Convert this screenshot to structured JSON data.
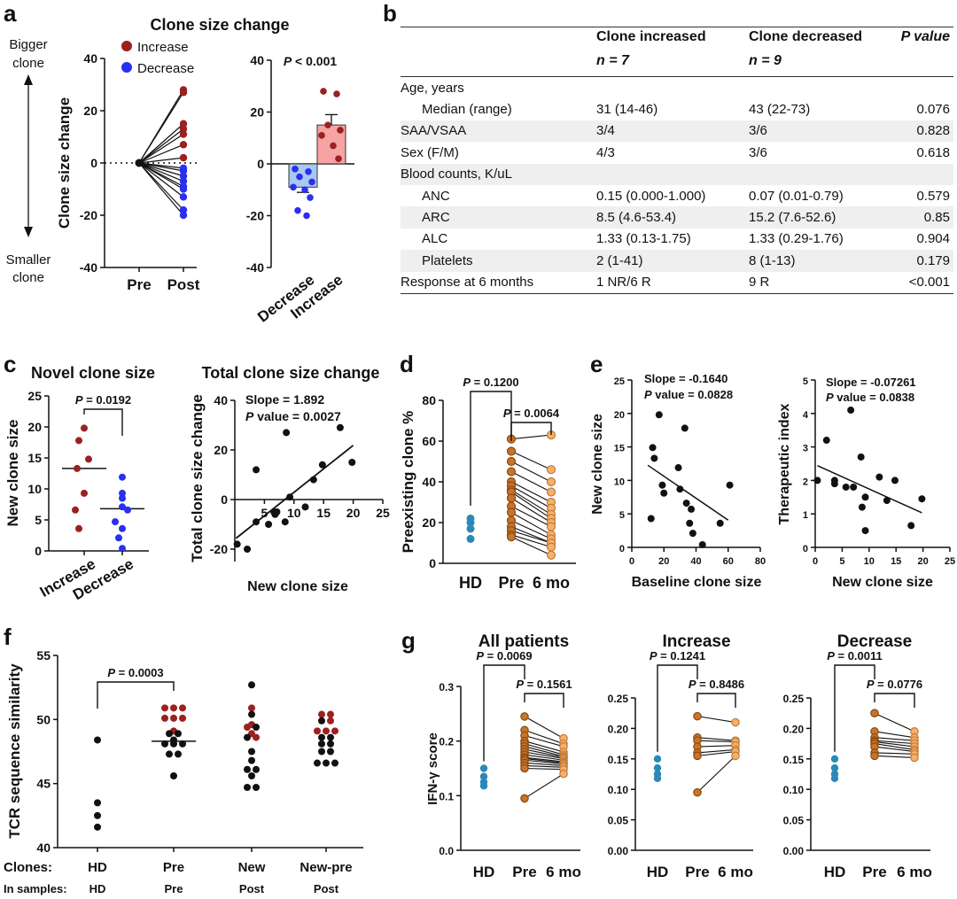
{
  "panels": {
    "a": "a",
    "b": "b",
    "c": "c",
    "d": "d",
    "e": "e",
    "f": "f",
    "g": "g"
  },
  "colors": {
    "increase": "#9b2020",
    "decrease": "#2a2ff0",
    "hd": "#2a89b8",
    "pre": "#c8742a",
    "post": "#f6b06e",
    "black": "#111111",
    "bar_decrease": "#a9c8f2",
    "bar_increase": "#f6a3a3"
  },
  "panel_a": {
    "title": "Clone size change",
    "bigger_label": [
      "Bigger",
      "clone"
    ],
    "smaller_label": [
      "Smaller",
      "clone"
    ],
    "legend": [
      "Increase",
      "Decrease"
    ]
  },
  "panel_c": {
    "title_left": "Novel clone size",
    "title_right": "Total clone size change"
  },
  "panel_f": {
    "row_clones_label": "Clones:",
    "row_samples_label": "In samples:",
    "clones": [
      "HD",
      "Pre",
      "New",
      "New-pre"
    ],
    "samples": [
      "HD",
      "Pre",
      "Post",
      "Post"
    ]
  },
  "table_b": {
    "headers": [
      "",
      "Clone increased",
      "Clone decreased",
      "P value"
    ],
    "subheaders": [
      "",
      "n = 7",
      "n = 9",
      ""
    ],
    "rows": [
      {
        "cells": [
          "Age, years",
          "",
          "",
          ""
        ],
        "indent": false,
        "shade": false
      },
      {
        "cells": [
          "Median (range)",
          "31 (14-46)",
          "43 (22-73)",
          "0.076"
        ],
        "indent": true,
        "shade": false
      },
      {
        "cells": [
          "SAA/VSAA",
          "3/4",
          "3/6",
          "0.828"
        ],
        "indent": false,
        "shade": true
      },
      {
        "cells": [
          "Sex (F/M)",
          "4/3",
          "3/6",
          "0.618"
        ],
        "indent": false,
        "shade": false
      },
      {
        "cells": [
          "Blood counts, K/uL",
          "",
          "",
          ""
        ],
        "indent": false,
        "shade": true
      },
      {
        "cells": [
          "ANC",
          "0.15 (0.000-1.000)",
          "0.07 (0.01-0.79)",
          "0.579"
        ],
        "indent": true,
        "shade": false
      },
      {
        "cells": [
          "ARC",
          "8.5 (4.6-53.4)",
          "15.2 (7.6-52.6)",
          "0.85"
        ],
        "indent": true,
        "shade": true
      },
      {
        "cells": [
          "ALC",
          "1.33 (0.13-1.75)",
          "1.33 (0.29-1.76)",
          "0.904"
        ],
        "indent": true,
        "shade": false
      },
      {
        "cells": [
          "Platelets",
          "2 (1-41)",
          "8 (1-13)",
          "0.179"
        ],
        "indent": true,
        "shade": true
      },
      {
        "cells": [
          "Response at 6 months",
          "1 NR/6 R",
          "9 R",
          "<0.001"
        ],
        "indent": false,
        "shade": false
      }
    ]
  },
  "chart_data": [
    {
      "id": "a1",
      "type": "line",
      "title": "",
      "xlabel": "",
      "ylabel": "Clone size change",
      "categories": [
        "Pre",
        "Post"
      ],
      "ylim": [
        -40,
        40
      ],
      "yticks": [
        -40,
        -20,
        0,
        20,
        40
      ],
      "series": [
        {
          "name": "Increase",
          "pre": 0,
          "post": [
            28,
            27,
            15,
            13,
            11,
            7,
            2
          ]
        },
        {
          "name": "Decrease",
          "pre": 0,
          "post": [
            -2,
            -3,
            -5,
            -7,
            -9,
            -10,
            -13,
            -18,
            -20
          ]
        }
      ]
    },
    {
      "id": "a2",
      "type": "bar",
      "annotation": "P < 0.001",
      "categories": [
        "Decrease",
        "Increase"
      ],
      "values": [
        -9,
        15
      ],
      "sem": [
        2,
        4
      ],
      "ylim": [
        -40,
        40
      ],
      "yticks": [
        -40,
        -20,
        0,
        20,
        40
      ],
      "points": [
        [
          -2,
          -3,
          -5,
          -7,
          -9,
          -10,
          -13,
          -18,
          -20
        ],
        [
          28,
          27,
          15,
          13,
          11,
          7,
          2
        ]
      ]
    },
    {
      "id": "c1",
      "type": "scatter",
      "title": "Novel clone size",
      "ylabel": "New clone size",
      "categories": [
        "Increase",
        "Decrease"
      ],
      "ylim": [
        0,
        25
      ],
      "yticks": [
        0,
        5,
        10,
        15,
        20,
        25
      ],
      "annotation": "P = 0.0192",
      "groups": [
        {
          "name": "Increase",
          "values": [
            19.8,
            17.8,
            14.8,
            13.3,
            9.3,
            6.6,
            3.6
          ],
          "median": 13.3
        },
        {
          "name": "Decrease",
          "values": [
            11.9,
            9.3,
            8.5,
            7.1,
            6.6,
            4.7,
            3.6,
            2.1,
            0.4
          ],
          "median": 6.8
        }
      ]
    },
    {
      "id": "c2",
      "type": "scatter",
      "title": "Total clone size change",
      "xlabel": "New clone size",
      "ylabel": "Total clone size change",
      "xlim": [
        0,
        25
      ],
      "ylim": [
        -25,
        40
      ],
      "xticks": [
        5,
        10,
        15,
        20,
        25
      ],
      "yticks": [
        -20,
        0,
        20,
        40
      ],
      "annotation": [
        "Slope = 1.892",
        "P value = 0.0027"
      ],
      "x": [
        0.4,
        2.1,
        3.6,
        3.6,
        5.7,
        6.6,
        6.8,
        7.1,
        8.5,
        8.7,
        9.3,
        11.9,
        13.3,
        14.8,
        17.8,
        19.8
      ],
      "y": [
        -18,
        -20,
        -9,
        12,
        -10,
        -5,
        -6,
        -5,
        -9,
        27,
        1,
        -3,
        8,
        14,
        29,
        15
      ],
      "fit": {
        "slope": 1.892,
        "intercept": -16
      }
    },
    {
      "id": "d",
      "type": "scatter",
      "ylabel": "Preexisting clone %",
      "categories": [
        "HD",
        "Pre",
        "6 mo"
      ],
      "ylim": [
        0,
        80
      ],
      "yticks": [
        0,
        20,
        40,
        60,
        80
      ],
      "annotations": [
        "P = 0.1200",
        "P = 0.0064"
      ],
      "hd": [
        22,
        20,
        17,
        12
      ],
      "pre": [
        61,
        55,
        50,
        45,
        40,
        38,
        36,
        35,
        32,
        28,
        25,
        21,
        18,
        16,
        14,
        13
      ],
      "post": [
        63,
        46,
        40,
        35,
        30,
        27,
        24,
        22,
        20,
        18,
        14,
        12,
        10,
        10,
        8,
        4
      ]
    },
    {
      "id": "e1",
      "type": "scatter",
      "xlabel": "Baseline clone size",
      "ylabel": "New clone size",
      "xlim": [
        0,
        80
      ],
      "ylim": [
        0,
        25
      ],
      "xticks": [
        0,
        20,
        40,
        60,
        80
      ],
      "yticks": [
        0,
        5,
        10,
        15,
        20,
        25
      ],
      "annotation": [
        "Slope = -0.1640",
        "P value = 0.0828"
      ],
      "x": [
        12,
        13,
        14,
        17,
        19,
        20,
        29,
        30,
        33,
        34,
        36,
        37,
        38,
        44,
        55,
        61
      ],
      "y": [
        4.3,
        14.9,
        13.3,
        19.8,
        9.3,
        8.1,
        11.9,
        8.7,
        17.8,
        6.6,
        3.6,
        5.7,
        2.1,
        0.4,
        3.6,
        9.3
      ],
      "fit": {
        "slope": -0.164,
        "intercept": 13.9
      }
    },
    {
      "id": "e2",
      "type": "scatter",
      "xlabel": "New clone size",
      "ylabel": "Therapeutic index",
      "xlim": [
        0,
        25
      ],
      "ylim": [
        0,
        5
      ],
      "xticks": [
        0,
        5,
        10,
        15,
        20,
        25
      ],
      "yticks": [
        0,
        1,
        2,
        3,
        4,
        5
      ],
      "annotation": [
        "Slope = -0.07261",
        "P value = 0.0838"
      ],
      "x": [
        0.4,
        2.1,
        3.6,
        3.6,
        5.7,
        6.6,
        7.1,
        8.5,
        8.7,
        9.3,
        9.3,
        11.9,
        13.3,
        14.8,
        17.8,
        19.8
      ],
      "y": [
        2.0,
        3.2,
        2.0,
        1.9,
        1.8,
        4.1,
        1.8,
        2.7,
        1.2,
        1.5,
        0.5,
        2.1,
        1.4,
        2.0,
        0.65,
        1.45
      ],
      "fit": {
        "slope": -0.07261,
        "intercept": 2.47
      }
    },
    {
      "id": "f",
      "type": "scatter",
      "ylabel": "TCR sequence similarity",
      "categories": [
        "HD",
        "Pre",
        "New",
        "New-pre"
      ],
      "ylim": [
        40,
        55
      ],
      "yticks": [
        40,
        45,
        50,
        55
      ],
      "annotation": "P = 0.0003",
      "groups": [
        {
          "name": "HD",
          "median": null,
          "points": [
            [
              48.4,
              "k"
            ],
            [
              43.5,
              "k"
            ],
            [
              42.5,
              "k"
            ],
            [
              41.6,
              "k"
            ]
          ]
        },
        {
          "name": "Pre",
          "median": 48.3,
          "points": [
            [
              50.9,
              "r"
            ],
            [
              50.9,
              "r"
            ],
            [
              50.9,
              "r"
            ],
            [
              50.1,
              "r"
            ],
            [
              50.1,
              "r"
            ],
            [
              50.1,
              "r"
            ],
            [
              49.1,
              "r"
            ],
            [
              48.9,
              "k"
            ],
            [
              48.9,
              "k"
            ],
            [
              48.4,
              "k"
            ],
            [
              48.1,
              "k"
            ],
            [
              48.1,
              "k"
            ],
            [
              48.1,
              "k"
            ],
            [
              47.3,
              "k"
            ],
            [
              47.3,
              "k"
            ],
            [
              45.6,
              "k"
            ]
          ]
        },
        {
          "name": "New",
          "median": null,
          "points": [
            [
              52.7,
              "k"
            ],
            [
              50.9,
              "r"
            ],
            [
              50.4,
              "k"
            ],
            [
              49.6,
              "r"
            ],
            [
              49.4,
              "r"
            ],
            [
              49.4,
              "k"
            ],
            [
              48.9,
              "r"
            ],
            [
              48.6,
              "k"
            ],
            [
              48.6,
              "r"
            ],
            [
              47.5,
              "k"
            ],
            [
              46.8,
              "k"
            ],
            [
              46.1,
              "k"
            ],
            [
              46.1,
              "k"
            ],
            [
              45.6,
              "k"
            ],
            [
              44.7,
              "k"
            ],
            [
              44.7,
              "k"
            ]
          ]
        },
        {
          "name": "New-pre",
          "median": null,
          "points": [
            [
              50.4,
              "r"
            ],
            [
              50.4,
              "r"
            ],
            [
              49.9,
              "k"
            ],
            [
              49.9,
              "r"
            ],
            [
              49.1,
              "r"
            ],
            [
              49.1,
              "r"
            ],
            [
              49.1,
              "r"
            ],
            [
              48.6,
              "k"
            ],
            [
              48.6,
              "k"
            ],
            [
              48.1,
              "k"
            ],
            [
              48.1,
              "k"
            ],
            [
              47.5,
              "k"
            ],
            [
              47.5,
              "k"
            ],
            [
              46.6,
              "k"
            ],
            [
              46.6,
              "k"
            ],
            [
              46.6,
              "k"
            ]
          ]
        }
      ]
    },
    {
      "id": "g1",
      "type": "scatter",
      "title": "All patients",
      "ylabel": "IFN-γ score",
      "categories": [
        "HD",
        "Pre",
        "6 mo"
      ],
      "ylim": [
        0,
        0.3
      ],
      "yticks": [
        "0.0",
        "0.1",
        "0.2",
        "0.3"
      ],
      "annotations": [
        "P = 0.0069",
        "P = 0.1561"
      ],
      "hd": [
        0.15,
        0.135,
        0.125,
        0.118
      ],
      "pre": [
        0.245,
        0.22,
        0.21,
        0.2,
        0.195,
        0.19,
        0.185,
        0.18,
        0.175,
        0.17,
        0.168,
        0.165,
        0.16,
        0.155,
        0.15,
        0.095
      ],
      "post": [
        0.205,
        0.195,
        0.19,
        0.18,
        0.175,
        0.172,
        0.17,
        0.168,
        0.165,
        0.162,
        0.16,
        0.158,
        0.155,
        0.152,
        0.148,
        0.14
      ]
    },
    {
      "id": "g2",
      "type": "scatter",
      "title": "Increase",
      "categories": [
        "HD",
        "Pre",
        "6 mo"
      ],
      "ylim": [
        0,
        0.25
      ],
      "yticks": [
        "0.00",
        "0.05",
        "0.10",
        "0.15",
        "0.20",
        "0.25"
      ],
      "annotations": [
        "P = 0.1241",
        "P = 0.8486"
      ],
      "hd": [
        0.15,
        0.135,
        0.125,
        0.118
      ],
      "pre": [
        0.22,
        0.185,
        0.18,
        0.17,
        0.16,
        0.155,
        0.095
      ],
      "post": [
        0.21,
        0.18,
        0.178,
        0.172,
        0.165,
        0.162,
        0.155
      ]
    },
    {
      "id": "g3",
      "type": "scatter",
      "title": "Decrease",
      "categories": [
        "HD",
        "Pre",
        "6 mo"
      ],
      "ylim": [
        0,
        0.25
      ],
      "yticks": [
        "0.00",
        "0.05",
        "0.10",
        "0.15",
        "0.20",
        "0.25"
      ],
      "annotations": [
        "P = 0.0011",
        "P = 0.0776"
      ],
      "hd": [
        0.15,
        0.135,
        0.125,
        0.118
      ],
      "pre": [
        0.225,
        0.195,
        0.185,
        0.18,
        0.178,
        0.175,
        0.17,
        0.16,
        0.155
      ],
      "post": [
        0.195,
        0.185,
        0.18,
        0.175,
        0.17,
        0.165,
        0.162,
        0.158,
        0.152
      ]
    }
  ]
}
